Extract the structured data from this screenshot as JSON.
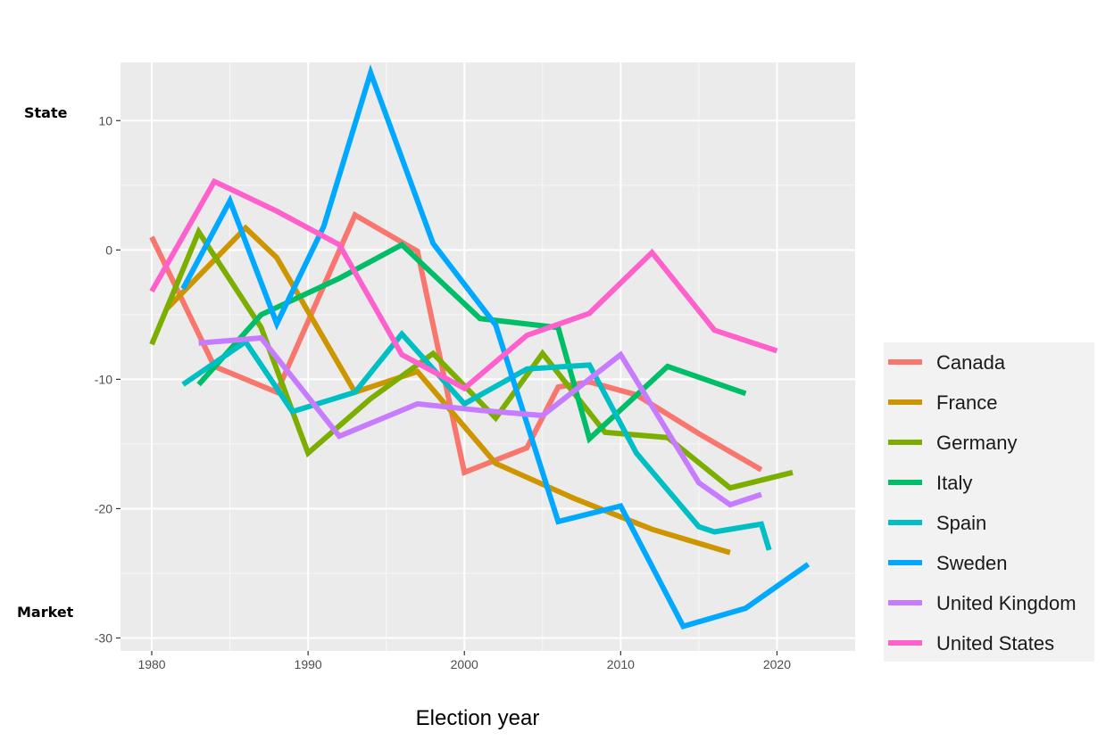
{
  "chart_data": {
    "type": "line",
    "title": "",
    "xlabel": "Election year",
    "ylabel_top": "State",
    "ylabel_bottom": "Market",
    "xlim": [
      1978,
      2025
    ],
    "ylim": [
      -31,
      14.5
    ],
    "x_ticks": [
      1980,
      1990,
      2000,
      2010,
      2020
    ],
    "y_ticks": [
      10,
      0,
      -10,
      -20,
      -30
    ],
    "grid": true,
    "legend_position": "right",
    "series": [
      {
        "name": "Canada",
        "color": "#F8766D",
        "x": [
          1980,
          1984,
          1988,
          1993,
          1997,
          2000,
          2004,
          2006,
          2008,
          2011,
          2015,
          2019
        ],
        "y": [
          1,
          -9,
          -11,
          2.7,
          -0.1,
          -17.2,
          -15.3,
          -10.6,
          -10.2,
          -11.2,
          -14.2,
          -17
        ]
      },
      {
        "name": "France",
        "color": "#CD9600",
        "x": [
          1981,
          1986,
          1988,
          1993,
          1997,
          2002,
          2007,
          2012,
          2017
        ],
        "y": [
          -4.5,
          1.7,
          -0.6,
          -11,
          -9.4,
          -16.5,
          -19.2,
          -21.6,
          -23.4
        ]
      },
      {
        "name": "Germany",
        "color": "#7CAE00",
        "x": [
          1980,
          1983,
          1987,
          1990,
          1994,
          1998,
          2002,
          2005,
          2009,
          2013,
          2017,
          2021
        ],
        "y": [
          -7.3,
          1.4,
          -6,
          -15.7,
          -11.5,
          -8,
          -13,
          -8,
          -14.1,
          -14.5,
          -18.4,
          -17.2
        ]
      },
      {
        "name": "Italy",
        "color": "#00BE67",
        "x": [
          1983,
          1987,
          1992,
          1996,
          2001,
          2006,
          2008,
          2013,
          2018
        ],
        "y": [
          -10.4,
          -5,
          -2.2,
          0.4,
          -5.3,
          -6,
          -14.6,
          -9,
          -11.1
        ]
      },
      {
        "name": "Spain",
        "color": "#00BFC4",
        "x": [
          1982,
          1986,
          1989,
          1993,
          1996,
          2000,
          2004,
          2008,
          2011,
          2015,
          2016,
          2019,
          2019.5
        ],
        "y": [
          -10.4,
          -7.1,
          -12.5,
          -11,
          -6.5,
          -11.9,
          -9.2,
          -8.9,
          -15.7,
          -21.4,
          -21.8,
          -21.2,
          -23.2
        ]
      },
      {
        "name": "Sweden",
        "color": "#00A9FF",
        "x": [
          1982,
          1985,
          1988,
          1991,
          1994,
          1998,
          2002,
          2006,
          2010,
          2014,
          2018,
          2022
        ],
        "y": [
          -3,
          3.8,
          -5.7,
          1.8,
          13.7,
          0.5,
          -5.8,
          -21,
          -19.8,
          -29.1,
          -27.7,
          -24.3
        ]
      },
      {
        "name": "United Kingdom",
        "color": "#C77CFF",
        "x": [
          1983,
          1987,
          1992,
          1997,
          2001,
          2005,
          2010,
          2015,
          2017,
          2019
        ],
        "y": [
          -7.2,
          -6.8,
          -14.4,
          -11.9,
          -12.4,
          -12.8,
          -8.1,
          -18,
          -19.7,
          -18.9
        ]
      },
      {
        "name": "United States",
        "color": "#FF61CC",
        "x": [
          1980,
          1984,
          1988,
          1992,
          1996,
          2000,
          2004,
          2008,
          2012,
          2016,
          2020
        ],
        "y": [
          -3.2,
          5.3,
          3,
          0.4,
          -8.1,
          -10.7,
          -6.6,
          -4.9,
          -0.2,
          -6.2,
          -7.8
        ]
      }
    ]
  }
}
